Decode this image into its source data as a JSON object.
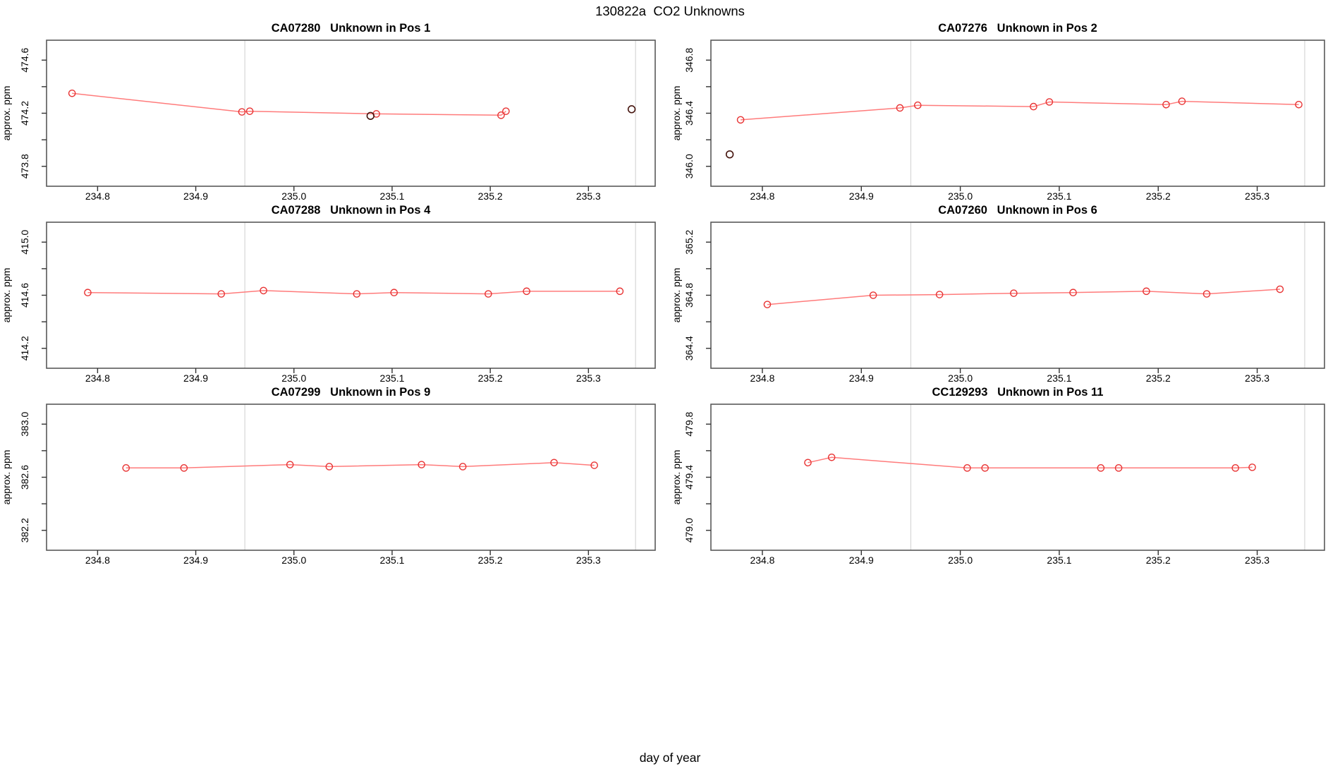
{
  "page_title": "130822a  CO2 Unknowns",
  "xlabel": "day of year",
  "colors": {
    "series_line": "#ff7b7b",
    "series_marker": "#e83434",
    "flagged_marker": "#45140e",
    "reference_line": "#d6d6d6",
    "panel_border": "#595959",
    "tick": "#333333",
    "text": "#000000",
    "background": "#ffffff"
  },
  "chart_data": [
    {
      "type": "line",
      "title": "CA07280   Unknown in Pos 1",
      "ylabel": "approx. ppm",
      "xlim": [
        234.748,
        235.368
      ],
      "ylim": [
        473.65,
        474.75
      ],
      "xticks": [
        234.8,
        234.9,
        235.0,
        235.1,
        235.2,
        235.3
      ],
      "xtick_labels": [
        "234.8",
        "234.9",
        "235.0",
        "235.1",
        "235.2",
        "235.3"
      ],
      "yticks": [
        473.8,
        474.0,
        474.2,
        474.4,
        474.6
      ],
      "ytick_labels": [
        "473.8",
        "",
        "474.2",
        "",
        "474.6"
      ],
      "reference_lines_x": [
        234.95,
        235.348
      ],
      "grid": false,
      "series": {
        "name": "unknown-co2-red",
        "x": [
          234.774,
          234.947,
          234.955,
          235.084,
          235.211,
          235.216
        ],
        "y": [
          474.35,
          474.21,
          474.215,
          474.195,
          474.185,
          474.215
        ]
      },
      "flagged_points": [
        {
          "x": 235.078,
          "y": 474.18
        },
        {
          "x": 235.344,
          "y": 474.23
        }
      ]
    },
    {
      "type": "line",
      "title": "CA07276   Unknown in Pos 2",
      "ylabel": "approx. ppm",
      "xlim": [
        234.748,
        235.368
      ],
      "ylim": [
        345.85,
        346.95
      ],
      "xticks": [
        234.8,
        234.9,
        235.0,
        235.1,
        235.2,
        235.3
      ],
      "xtick_labels": [
        "234.8",
        "234.9",
        "235.0",
        "235.1",
        "235.2",
        "235.3"
      ],
      "yticks": [
        346.0,
        346.2,
        346.4,
        346.6,
        346.8
      ],
      "ytick_labels": [
        "346.0",
        "",
        "346.4",
        "",
        "346.8"
      ],
      "reference_lines_x": [
        234.95,
        235.348
      ],
      "grid": false,
      "series": {
        "name": "unknown-co2-red",
        "x": [
          234.778,
          234.939,
          234.957,
          235.074,
          235.09,
          235.208,
          235.224,
          235.342
        ],
        "y": [
          346.35,
          346.44,
          346.46,
          346.45,
          346.485,
          346.465,
          346.49,
          346.465
        ]
      },
      "flagged_points": [
        {
          "x": 234.767,
          "y": 346.09
        }
      ]
    },
    {
      "type": "line",
      "title": "CA07288   Unknown in Pos 4",
      "ylabel": "approx. ppm",
      "xlim": [
        234.748,
        235.368
      ],
      "ylim": [
        414.05,
        415.15
      ],
      "xticks": [
        234.8,
        234.9,
        235.0,
        235.1,
        235.2,
        235.3
      ],
      "xtick_labels": [
        "234.8",
        "234.9",
        "235.0",
        "235.1",
        "235.2",
        "235.3"
      ],
      "yticks": [
        414.2,
        414.4,
        414.6,
        414.8,
        415.0
      ],
      "ytick_labels": [
        "414.2",
        "",
        "414.6",
        "",
        "415.0"
      ],
      "reference_lines_x": [
        234.95,
        235.348
      ],
      "grid": false,
      "series": {
        "name": "unknown-co2-red",
        "x": [
          234.79,
          234.926,
          234.969,
          235.064,
          235.102,
          235.198,
          235.237,
          235.332
        ],
        "y": [
          414.62,
          414.61,
          414.635,
          414.61,
          414.62,
          414.61,
          414.63,
          414.63
        ]
      },
      "flagged_points": []
    },
    {
      "type": "line",
      "title": "CA07260   Unknown in Pos 6",
      "ylabel": "approx. ppm",
      "xlim": [
        234.748,
        235.368
      ],
      "ylim": [
        364.25,
        365.35
      ],
      "xticks": [
        234.8,
        234.9,
        235.0,
        235.1,
        235.2,
        235.3
      ],
      "xtick_labels": [
        "234.8",
        "234.9",
        "235.0",
        "235.1",
        "235.2",
        "235.3"
      ],
      "yticks": [
        364.4,
        364.6,
        364.8,
        365.0,
        365.2
      ],
      "ytick_labels": [
        "364.4",
        "",
        "364.8",
        "",
        "365.2"
      ],
      "reference_lines_x": [
        234.95,
        235.348
      ],
      "grid": false,
      "series": {
        "name": "unknown-co2-red",
        "x": [
          234.805,
          234.912,
          234.979,
          235.054,
          235.114,
          235.188,
          235.249,
          235.323
        ],
        "y": [
          364.73,
          364.8,
          364.805,
          364.815,
          364.82,
          364.83,
          364.81,
          364.845
        ]
      },
      "flagged_points": []
    },
    {
      "type": "line",
      "title": "CA07299   Unknown in Pos 9",
      "ylabel": "approx. ppm",
      "xlim": [
        234.748,
        235.368
      ],
      "ylim": [
        382.05,
        383.15
      ],
      "xticks": [
        234.8,
        234.9,
        235.0,
        235.1,
        235.2,
        235.3
      ],
      "xtick_labels": [
        "234.8",
        "234.9",
        "235.0",
        "235.1",
        "235.2",
        "235.3"
      ],
      "yticks": [
        382.2,
        382.4,
        382.6,
        382.8,
        383.0
      ],
      "ytick_labels": [
        "382.2",
        "",
        "382.6",
        "",
        "383.0"
      ],
      "reference_lines_x": [
        234.95,
        235.348
      ],
      "grid": false,
      "series": {
        "name": "unknown-co2-red",
        "x": [
          234.829,
          234.888,
          234.996,
          235.036,
          235.13,
          235.172,
          235.265,
          235.306
        ],
        "y": [
          382.67,
          382.67,
          382.695,
          382.68,
          382.695,
          382.68,
          382.71,
          382.69
        ]
      },
      "flagged_points": []
    },
    {
      "type": "line",
      "title": "CC129293   Unknown in Pos 11",
      "ylabel": "approx. ppm",
      "xlim": [
        234.748,
        235.368
      ],
      "ylim": [
        478.85,
        479.95
      ],
      "xticks": [
        234.8,
        234.9,
        235.0,
        235.1,
        235.2,
        235.3
      ],
      "xtick_labels": [
        "234.8",
        "234.9",
        "235.0",
        "235.1",
        "235.2",
        "235.3"
      ],
      "yticks": [
        479.0,
        479.2,
        479.4,
        479.6,
        479.8
      ],
      "ytick_labels": [
        "479.0",
        "",
        "479.4",
        "",
        "479.8"
      ],
      "reference_lines_x": [
        234.95,
        235.348
      ],
      "grid": false,
      "series": {
        "name": "unknown-co2-red",
        "x": [
          234.846,
          234.87,
          235.007,
          235.025,
          235.142,
          235.16,
          235.278,
          235.295
        ],
        "y": [
          479.51,
          479.55,
          479.47,
          479.47,
          479.47,
          479.47,
          479.47,
          479.475
        ]
      },
      "flagged_points": []
    }
  ]
}
